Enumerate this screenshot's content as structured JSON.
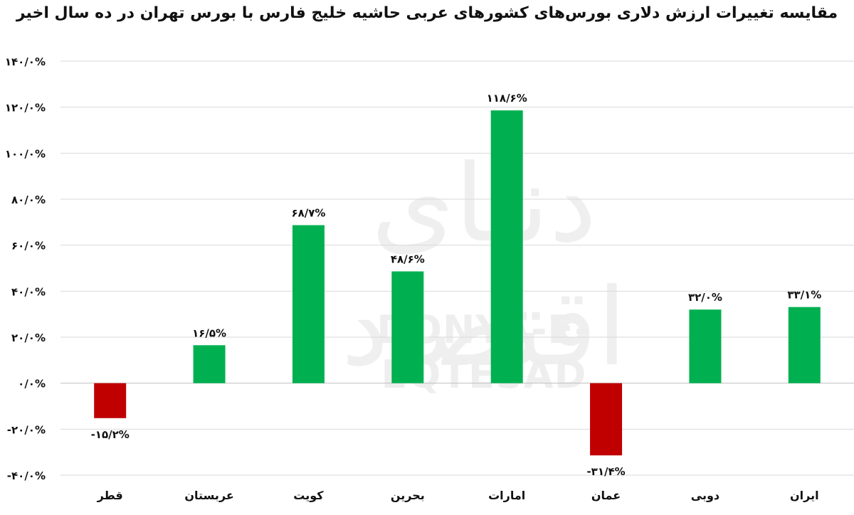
{
  "watermark": {
    "latin": "DONYA-E-EQTESAD",
    "persian": "دنیای اقتصاد"
  },
  "chart_data": {
    "type": "bar",
    "title": "مقایسه تغییرات ارزش دلاری بورس‌های کشورهای عربی حاشیه خلیج فارس با بورس تهران در ده سال اخیر",
    "xlabel": "",
    "ylabel": "",
    "categories": [
      "قطر",
      "عربستان",
      "کویت",
      "بحرین",
      "امارات",
      "عمان",
      "دوبی",
      "ایران"
    ],
    "values": [
      -15.2,
      16.5,
      68.7,
      48.6,
      118.6,
      -31.4,
      32.0,
      33.1
    ],
    "value_labels": [
      "-۱۵/۲%",
      "۱۶/۵%",
      "۶۸/۷%",
      "۴۸/۶%",
      "۱۱۸/۶%",
      "-۳۱/۴%",
      "۳۲/۰%",
      "۳۳/۱%"
    ],
    "ylim": [
      -40,
      140
    ],
    "yticks": [
      140,
      120,
      100,
      80,
      60,
      40,
      20,
      0,
      -20,
      -40
    ],
    "ytick_labels": [
      "۱۴۰/۰%",
      "۱۲۰/۰%",
      "۱۰۰/۰%",
      "۸۰/۰%",
      "۶۰/۰%",
      "۴۰/۰%",
      "۲۰/۰%",
      "۰/۰%",
      "-۲۰/۰%",
      "-۴۰/۰%"
    ],
    "grid": true,
    "colors": {
      "positive": "#00b050",
      "negative": "#c00000",
      "grid": "#d9d9d9",
      "axis": "#bfbfbf"
    }
  }
}
